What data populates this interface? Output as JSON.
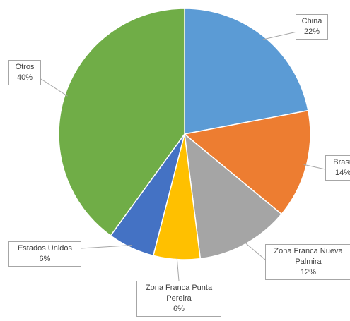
{
  "chart_data": {
    "type": "pie",
    "categories": [
      "China",
      "Brasil",
      "Zona Franca Nueva Palmira",
      "Zona Franca Punta Pereira",
      "Estados Unidos",
      "Otros"
    ],
    "values": [
      22,
      14,
      12,
      6,
      6,
      40
    ],
    "value_labels": [
      "22%",
      "14%",
      "12%",
      "6%",
      "6%",
      "40%"
    ],
    "colors": [
      "#5b9bd5",
      "#ed7d31",
      "#a5a5a5",
      "#ffc000",
      "#4472c4",
      "#70ad47"
    ]
  }
}
